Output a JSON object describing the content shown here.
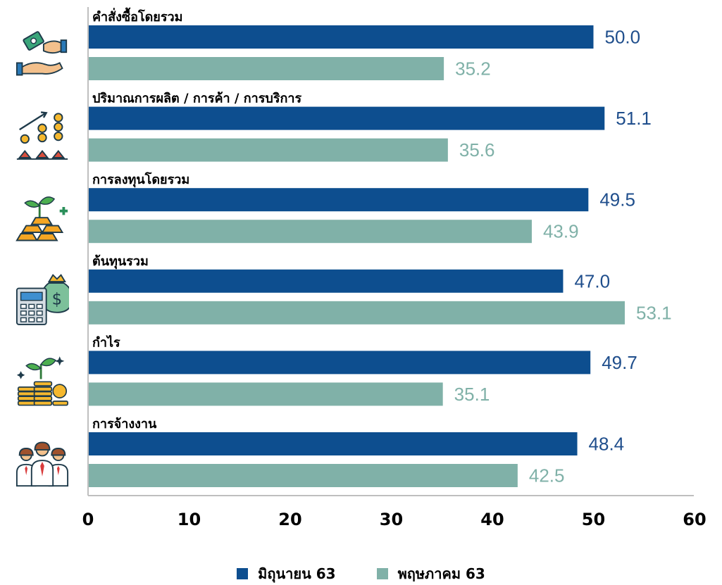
{
  "colors": {
    "series_1": "#0d4e8f",
    "series_2": "#80b1a8",
    "axis": "#bfbfbf"
  },
  "chart_data": {
    "type": "bar",
    "orientation": "horizontal",
    "categories": [
      "คำสั่งซื้อโดยรวม",
      "ปริมาณการผลิต / การค้า / การบริการ",
      "การลงทุนโดยรวม",
      "ต้นทุนรวม",
      "กำไร",
      "การจ้างงาน"
    ],
    "category_icons": [
      "money-exchange-icon",
      "coins-growth-icon",
      "investment-plant-icon",
      "calculator-money-bag-icon",
      "profit-plant-coins-icon",
      "employees-group-icon"
    ],
    "series": [
      {
        "name": "มิถุนายน 63",
        "values": [
          50.0,
          51.1,
          49.5,
          47.0,
          49.7,
          48.4
        ],
        "value_labels": [
          "50.0",
          "51.1",
          "49.5",
          "47.0",
          "49.7",
          "48.4"
        ]
      },
      {
        "name": "พฤษภาคม 63",
        "values": [
          35.2,
          35.6,
          43.9,
          53.1,
          35.1,
          42.5
        ],
        "value_labels": [
          "35.2",
          "35.6",
          "43.9",
          "53.1",
          "35.1",
          "42.5"
        ]
      }
    ],
    "xlim": [
      0,
      60
    ],
    "xticks": [
      "0",
      "10",
      "20",
      "30",
      "40",
      "50",
      "60"
    ],
    "grid": false,
    "legend_position": "bottom-center"
  }
}
